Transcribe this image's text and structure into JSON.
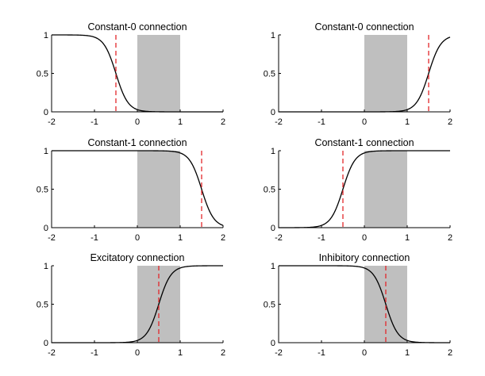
{
  "figure": {
    "background": "#ffffff",
    "shade_color": "#bfbfbf",
    "curve_color": "#000000",
    "marker_color": "#e3262a"
  },
  "chart_data": [
    {
      "type": "line",
      "title": "Constant-0 connection",
      "xlim": [
        -2,
        2
      ],
      "ylim": [
        0,
        1
      ],
      "xticks": [
        -2,
        -1,
        0,
        1,
        2
      ],
      "xtick_labels": [
        "-2",
        "-1",
        "0",
        "1",
        "2"
      ],
      "yticks": [
        0,
        0.5,
        1
      ],
      "ytick_labels": [
        "0",
        "0.5",
        "1"
      ],
      "shaded_region": [
        0,
        1
      ],
      "curve": {
        "direction": "decreasing",
        "center": -0.5,
        "steepness": 7
      },
      "vline": -0.5
    },
    {
      "type": "line",
      "title": "Constant-0 connection",
      "xlim": [
        -2,
        2
      ],
      "ylim": [
        0,
        1
      ],
      "xticks": [
        -2,
        -1,
        0,
        1,
        2
      ],
      "xtick_labels": [
        "-2",
        "-1",
        "0",
        "1",
        "2"
      ],
      "yticks": [
        0,
        0.5,
        1
      ],
      "ytick_labels": [
        "0",
        "0.5",
        "1"
      ],
      "shaded_region": [
        0,
        1
      ],
      "curve": {
        "direction": "increasing",
        "center": 1.5,
        "steepness": 7
      },
      "vline": 1.5
    },
    {
      "type": "line",
      "title": "Constant-1 connection",
      "xlim": [
        -2,
        2
      ],
      "ylim": [
        0,
        1
      ],
      "xticks": [
        -2,
        -1,
        0,
        1,
        2
      ],
      "xtick_labels": [
        "-2",
        "-1",
        "0",
        "1",
        "2"
      ],
      "yticks": [
        0,
        0.5,
        1
      ],
      "ytick_labels": [
        "0",
        "0.5",
        "1"
      ],
      "shaded_region": [
        0,
        1
      ],
      "curve": {
        "direction": "decreasing",
        "center": 1.5,
        "steepness": 7
      },
      "vline": 1.5
    },
    {
      "type": "line",
      "title": "Constant-1 connection",
      "xlim": [
        -2,
        2
      ],
      "ylim": [
        0,
        1
      ],
      "xticks": [
        -2,
        -1,
        0,
        1,
        2
      ],
      "xtick_labels": [
        "-2",
        "-1",
        "0",
        "1",
        "2"
      ],
      "yticks": [
        0,
        0.5,
        1
      ],
      "ytick_labels": [
        "0",
        "0.5",
        "1"
      ],
      "shaded_region": [
        0,
        1
      ],
      "curve": {
        "direction": "increasing",
        "center": -0.5,
        "steepness": 7
      },
      "vline": -0.5
    },
    {
      "type": "line",
      "title": "Excitatory connection",
      "xlim": [
        -2,
        2
      ],
      "ylim": [
        0,
        1
      ],
      "xticks": [
        -2,
        -1,
        0,
        1,
        2
      ],
      "xtick_labels": [
        "-2",
        "-1",
        "0",
        "1",
        "2"
      ],
      "yticks": [
        0,
        0.5,
        1
      ],
      "ytick_labels": [
        "0",
        "0.5",
        "1"
      ],
      "shaded_region": [
        0,
        1
      ],
      "curve": {
        "direction": "increasing",
        "center": 0.5,
        "steepness": 7
      },
      "vline": 0.5
    },
    {
      "type": "line",
      "title": "Inhibitory connection",
      "xlim": [
        -2,
        2
      ],
      "ylim": [
        0,
        1
      ],
      "xticks": [
        -2,
        -1,
        0,
        1,
        2
      ],
      "xtick_labels": [
        "-2",
        "-1",
        "0",
        "1",
        "2"
      ],
      "yticks": [
        0,
        0.5,
        1
      ],
      "ytick_labels": [
        "0",
        "0.5",
        "1"
      ],
      "shaded_region": [
        0,
        1
      ],
      "curve": {
        "direction": "decreasing",
        "center": 0.5,
        "steepness": 7
      },
      "vline": 0.5
    }
  ]
}
